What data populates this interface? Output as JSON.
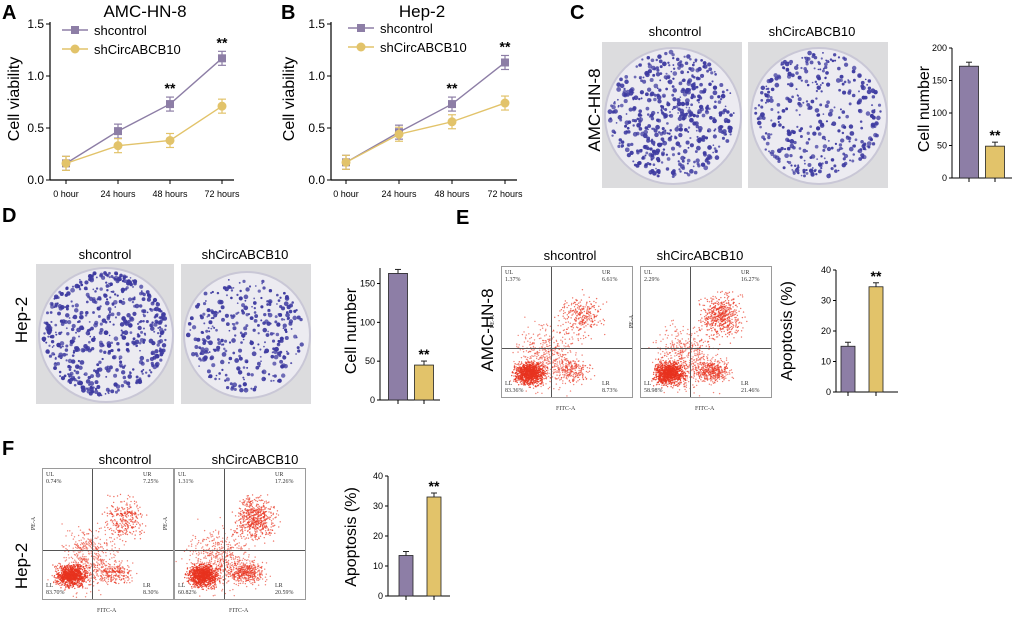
{
  "panels": {
    "A": "A",
    "B": "B",
    "C": "C",
    "D": "D",
    "E": "E",
    "F": "F"
  },
  "groups": {
    "control": "shcontrol",
    "treated": "shCircABCB10"
  },
  "cell_lines": {
    "amc": "AMC-HN-8",
    "hep": "Hep-2"
  },
  "colors": {
    "control": "#8d7ea6",
    "treated": "#e2c36a",
    "colony": "#3d3aa0",
    "dot": "#e8331f"
  },
  "sig_mark": "**",
  "axis_labels": {
    "viability": "Cell viability",
    "cell_number": "Cell number",
    "apoptosis": "Apoptosis (%)"
  },
  "flow_axis": {
    "x": "FITC-A",
    "y": "PE-A"
  },
  "chart_data": [
    {
      "id": "A",
      "type": "line",
      "title": "AMC-HN-8",
      "ylabel": "Cell viability",
      "categories": [
        "0 hour",
        "24 hours",
        "48 hours",
        "72 hours"
      ],
      "yticks": [
        "0.0",
        "0.5",
        "1.0",
        "1.5"
      ],
      "ylim": [
        0,
        1.5
      ],
      "series": [
        {
          "name": "shcontrol",
          "values": [
            0.16,
            0.47,
            0.73,
            1.17
          ]
        },
        {
          "name": "shCircABCB10",
          "values": [
            0.16,
            0.33,
            0.38,
            0.71
          ]
        }
      ],
      "annotations": [
        "",
        "",
        "**",
        "**"
      ]
    },
    {
      "id": "B",
      "type": "line",
      "title": "Hep-2",
      "ylabel": "Cell viability",
      "categories": [
        "0 hour",
        "24 hours",
        "48 hours",
        "72 hours"
      ],
      "yticks": [
        "0.0",
        "0.5",
        "1.0",
        "1.5"
      ],
      "ylim": [
        0,
        1.5
      ],
      "series": [
        {
          "name": "shcontrol",
          "values": [
            0.17,
            0.46,
            0.73,
            1.13
          ]
        },
        {
          "name": "shCircABCB10",
          "values": [
            0.17,
            0.44,
            0.56,
            0.74
          ]
        }
      ],
      "annotations": [
        "",
        "",
        "**",
        "**"
      ]
    },
    {
      "id": "C",
      "type": "bar",
      "ylabel": "Cell number",
      "categories": [
        "shcontrol",
        "shCircABCB10"
      ],
      "values": [
        172,
        49
      ],
      "yticks": [
        "0",
        "50",
        "100",
        "150",
        "200"
      ],
      "ylim": [
        0,
        200
      ],
      "annotations": [
        "",
        "**"
      ]
    },
    {
      "id": "D",
      "type": "bar",
      "ylabel": "Cell number",
      "categories": [
        "shcontrol",
        "shCircABCB10"
      ],
      "values": [
        163,
        45
      ],
      "yticks": [
        "0",
        "50",
        "100",
        "150"
      ],
      "ylim": [
        0,
        170
      ],
      "annotations": [
        "",
        "**"
      ]
    },
    {
      "id": "E",
      "type": "bar",
      "ylabel": "Apoptosis (%)",
      "categories": [
        "shcontrol",
        "shCircABCB10"
      ],
      "values": [
        15,
        34.5
      ],
      "yticks": [
        "0",
        "10",
        "20",
        "30",
        "40"
      ],
      "ylim": [
        0,
        40
      ],
      "annotations": [
        "",
        "**"
      ]
    },
    {
      "id": "F",
      "type": "bar",
      "ylabel": "Apoptosis (%)",
      "categories": [
        "shcontrol",
        "shCircABCB10"
      ],
      "values": [
        13.5,
        33
      ],
      "yticks": [
        "0",
        "10",
        "20",
        "30",
        "40"
      ],
      "ylim": [
        0,
        40
      ],
      "annotations": [
        "",
        "**"
      ]
    }
  ],
  "flow": {
    "E": {
      "shcontrol": {
        "UL": "1.37%",
        "UR": "6.61%",
        "LL": "83.36%",
        "LR": "8.73%"
      },
      "shCircABCB10": {
        "UL": "2.29%",
        "UR": "16.27%",
        "LL": "58.98%",
        "LR": "21.46%"
      }
    },
    "F": {
      "shcontrol": {
        "UL": "0.74%",
        "UR": "7.25%",
        "LL": "83.70%",
        "LR": "8.30%"
      },
      "shCircABCB10": {
        "UL": "1.31%",
        "UR": "17.26%",
        "LL": "60.82%",
        "LR": "20.59%"
      }
    }
  }
}
